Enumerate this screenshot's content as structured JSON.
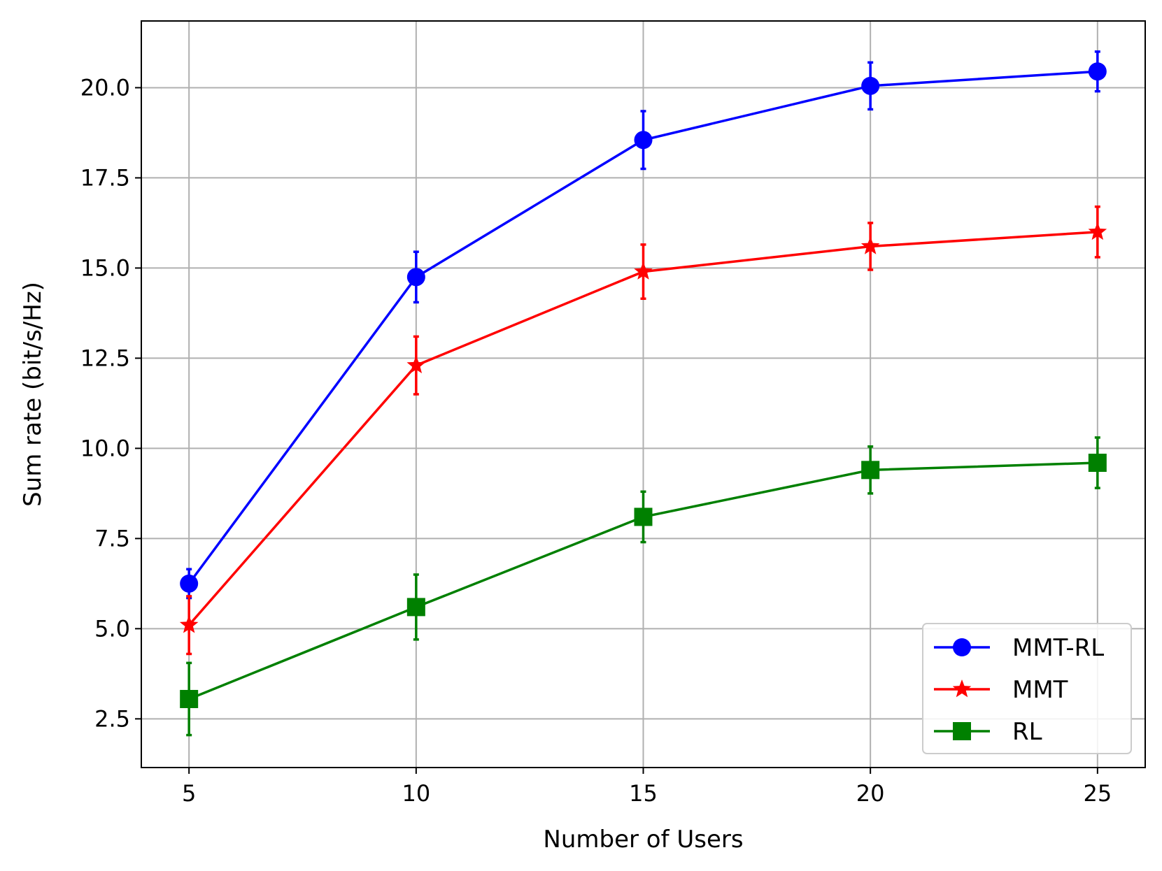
{
  "chart_data": {
    "type": "line",
    "xlabel": "Number of Users",
    "ylabel": "Sum rate (bit/s/Hz)",
    "xlim": [
      3.95,
      26.05
    ],
    "ylim": [
      1.15,
      21.85
    ],
    "x": [
      5,
      10,
      15,
      20,
      25
    ],
    "xticks": [
      5,
      10,
      15,
      20,
      25
    ],
    "xtick_labels": [
      "5",
      "10",
      "15",
      "20",
      "25"
    ],
    "yticks": [
      2.5,
      5.0,
      7.5,
      10.0,
      12.5,
      15.0,
      17.5,
      20.0
    ],
    "ytick_labels": [
      "2.5",
      "5.0",
      "7.5",
      "10.0",
      "12.5",
      "15.0",
      "17.5",
      "20.0"
    ],
    "grid": true,
    "legend_position": "bottom-right",
    "series": [
      {
        "name": "MMT-RL",
        "color": "#0000ff",
        "marker": "circle",
        "values": [
          6.25,
          14.75,
          18.55,
          20.05,
          20.45
        ],
        "errors": [
          0.4,
          0.7,
          0.8,
          0.65,
          0.55
        ]
      },
      {
        "name": "MMT",
        "color": "#ff0000",
        "marker": "star",
        "values": [
          5.1,
          12.3,
          14.9,
          15.6,
          16.0
        ],
        "errors": [
          0.8,
          0.8,
          0.75,
          0.65,
          0.7
        ]
      },
      {
        "name": "RL",
        "color": "#008000",
        "marker": "square",
        "values": [
          3.05,
          5.6,
          8.1,
          9.4,
          9.6
        ],
        "errors": [
          1.0,
          0.9,
          0.7,
          0.65,
          0.7
        ]
      }
    ]
  }
}
